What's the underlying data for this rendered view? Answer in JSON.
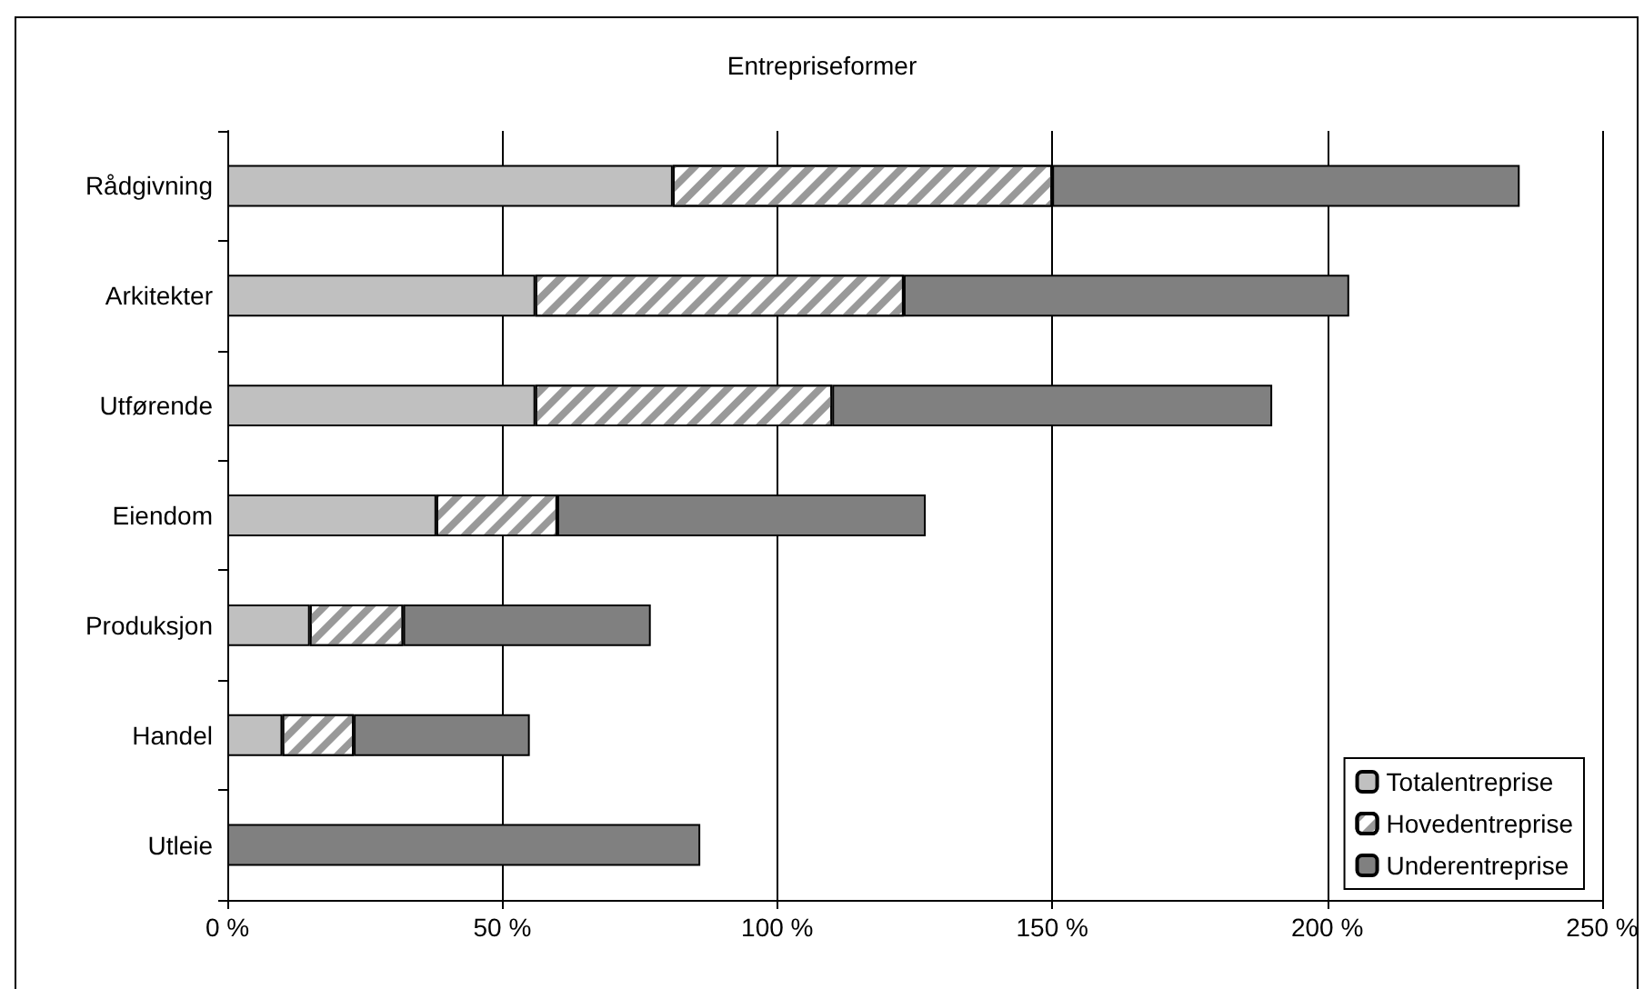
{
  "chart_data": {
    "type": "bar",
    "orientation": "horizontal",
    "stacked": true,
    "title": "Entrepriseformer",
    "categories": [
      "Rådgivning",
      "Arkitekter",
      "Utførende",
      "Eiendom",
      "Produksjon",
      "Handel",
      "Utleie"
    ],
    "series": [
      {
        "name": "Totalentreprise",
        "color": "#c0c0c0",
        "values": [
          81,
          56,
          56,
          38,
          15,
          10,
          null
        ]
      },
      {
        "name": "Hovedentreprise",
        "color": "#ffffff",
        "values": [
          69,
          67,
          54,
          22,
          17,
          13,
          null
        ]
      },
      {
        "name": "Underentreprise",
        "color": "#808080",
        "values": [
          85,
          81,
          80,
          67,
          45,
          32,
          86
        ]
      }
    ],
    "xlim": [
      0,
      250
    ],
    "xticks": [
      {
        "value": 0,
        "label": "0 %"
      },
      {
        "value": 50,
        "label": "50 %"
      },
      {
        "value": 100,
        "label": "100 %"
      },
      {
        "value": 150,
        "label": "150 %"
      },
      {
        "value": 200,
        "label": "200 %"
      },
      {
        "value": 250,
        "label": "250 %"
      }
    ],
    "grid": "x",
    "legend": "bottom right"
  }
}
